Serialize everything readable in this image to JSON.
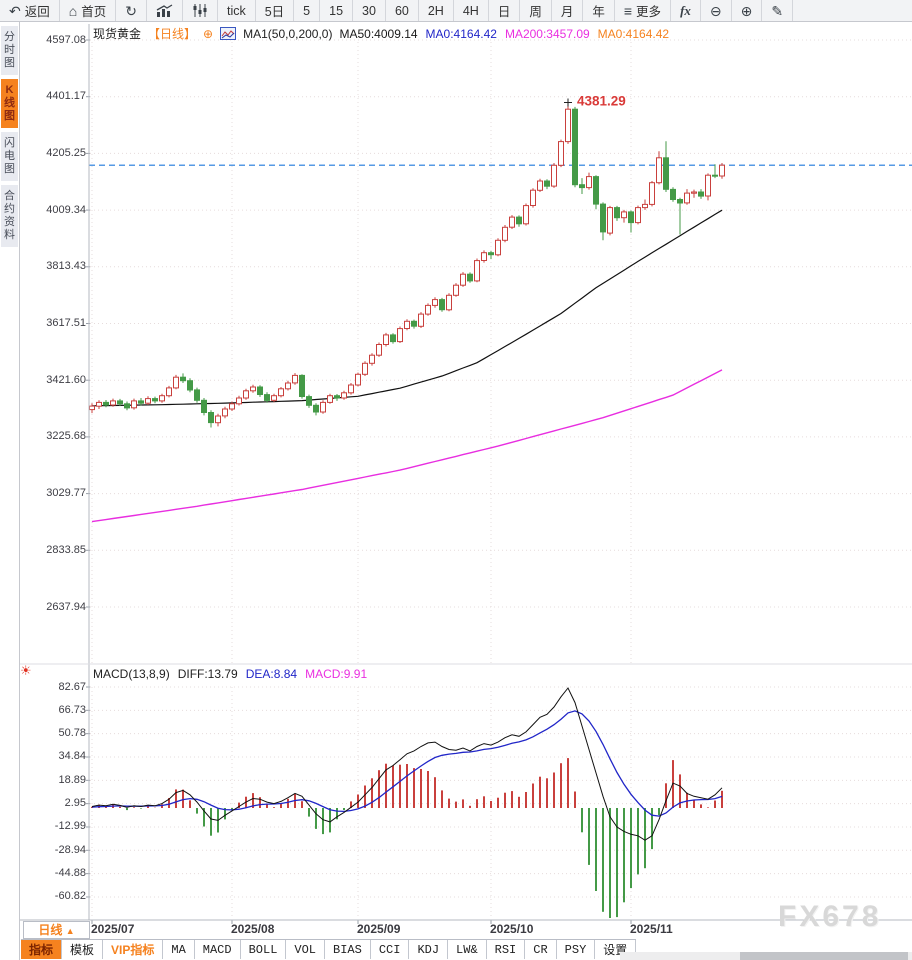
{
  "toolbar": {
    "items": [
      {
        "name": "back",
        "icon": "back",
        "label": "返回"
      },
      {
        "name": "home",
        "icon": "home",
        "label": "首页"
      },
      {
        "name": "refresh",
        "icon": "refresh"
      },
      {
        "name": "bar-chart",
        "icon": "bars"
      },
      {
        "name": "candlestick",
        "icon": "candles"
      },
      {
        "name": "tick",
        "label": "tick"
      },
      {
        "name": "5-day",
        "label": "5日"
      },
      {
        "name": "5-min",
        "label": "5"
      },
      {
        "name": "15-min",
        "label": "15"
      },
      {
        "name": "30-min",
        "label": "30"
      },
      {
        "name": "60-min",
        "label": "60"
      },
      {
        "name": "2-hour",
        "label": "2H"
      },
      {
        "name": "4-hour",
        "label": "4H"
      },
      {
        "name": "daily",
        "label": "日"
      },
      {
        "name": "weekly",
        "label": "周"
      },
      {
        "name": "monthly",
        "label": "月"
      },
      {
        "name": "yearly",
        "label": "年"
      },
      {
        "name": "more",
        "icon": "menu",
        "label": "更多"
      },
      {
        "name": "fx-functions",
        "icon": "fx"
      },
      {
        "name": "zoom-out",
        "icon": "zoom-out"
      },
      {
        "name": "zoom-in",
        "icon": "zoom-in"
      },
      {
        "name": "draw",
        "icon": "pencil"
      }
    ]
  },
  "sidebar": {
    "items": [
      {
        "name": "time-chart",
        "label": "分时图",
        "active": false
      },
      {
        "name": "kline-chart",
        "label": "K线图",
        "active": true
      },
      {
        "name": "lightning-chart",
        "label": "闪电图",
        "active": false
      },
      {
        "name": "contract-info",
        "label": "合约资料",
        "active": false
      }
    ]
  },
  "main_chart": {
    "title": "现货黄金",
    "timeframe_tag": "【日线】",
    "add_icon": "⊕",
    "ma_settings": "MA1(50,0,200,0)",
    "ma_values": [
      {
        "label": "MA50:4009.14",
        "color": "#1a1a1a"
      },
      {
        "label": "MA0:4164.42",
        "color": "#2126c8"
      },
      {
        "label": "MA200:3457.09",
        "color": "#ea30e0"
      },
      {
        "label": "MA0:4164.42",
        "color": "#f5821f"
      }
    ],
    "y_labels": [
      "4597.08",
      "4401.17",
      "4205.25",
      "4009.34",
      "3813.43",
      "3617.51",
      "3421.60",
      "3225.68",
      "3029.77",
      "2833.85",
      "2637.94"
    ],
    "annotation": "4381.29"
  },
  "macd": {
    "header": "MACD(13,8,9)",
    "diff_label": "DIFF:13.79",
    "dea_label": "DEA:8.84",
    "macd_label": "MACD:9.91",
    "y_labels": [
      "82.67",
      "66.73",
      "50.78",
      "34.84",
      "18.89",
      "2.95",
      "-12.99",
      "-28.94",
      "-44.88",
      "-60.82"
    ]
  },
  "x_axis": {
    "timeframe_label": "日线",
    "dropdown_arrow": "▲",
    "labels": [
      "2025/07",
      "2025/08",
      "2025/09",
      "2025/10",
      "2025/11"
    ]
  },
  "bottom_bar": {
    "items": [
      {
        "name": "indicators",
        "label": "指标",
        "style": "active"
      },
      {
        "name": "templates",
        "label": "模板",
        "style": ""
      },
      {
        "name": "vip-indicators",
        "label": "VIP指标",
        "style": "vip"
      },
      {
        "name": "ma",
        "label": "MA",
        "style": "mono"
      },
      {
        "name": "macd",
        "label": "MACD",
        "style": "mono"
      },
      {
        "name": "boll",
        "label": "BOLL",
        "style": "mono"
      },
      {
        "name": "vol",
        "label": "VOL",
        "style": "mono"
      },
      {
        "name": "bias",
        "label": "BIAS",
        "style": "mono"
      },
      {
        "name": "cci",
        "label": "CCI",
        "style": "mono"
      },
      {
        "name": "kdj",
        "label": "KDJ",
        "style": "mono"
      },
      {
        "name": "lw",
        "label": "LW&",
        "style": "mono"
      },
      {
        "name": "rsi",
        "label": "RSI",
        "style": "mono"
      },
      {
        "name": "cr",
        "label": "CR",
        "style": "mono"
      },
      {
        "name": "psy",
        "label": "PSY",
        "style": "mono"
      },
      {
        "name": "settings",
        "label": "设置",
        "style": ""
      }
    ]
  },
  "watermark": "FX678",
  "colors": {
    "accent_orange": "#f5821f",
    "up_red": "#c9403d",
    "down_green": "#449a47",
    "ma50": "#111111",
    "ma200": "#e82ee0",
    "dea_blue": "#2126c8",
    "diff_black": "#111111",
    "price_line": "#1f78dc",
    "annotation_red": "#d93a38",
    "grid": "#e6dcdc"
  },
  "chart_data": {
    "type": "candlestick+macd",
    "symbol": "现货黄金",
    "interval": "日线",
    "price_axis_ticks": [
      4597.08,
      4401.17,
      4205.25,
      4009.34,
      3813.43,
      3617.51,
      3421.6,
      3225.68,
      3029.77,
      2833.85,
      2637.94
    ],
    "macd_axis_ticks": [
      82.67,
      66.73,
      50.78,
      34.84,
      18.89,
      2.95,
      -12.99,
      -28.94,
      -44.88,
      -60.82
    ],
    "x_labels": [
      "2025/07",
      "2025/08",
      "2025/09",
      "2025/10",
      "2025/11"
    ],
    "x_label_indices": [
      0,
      20,
      38,
      57,
      77
    ],
    "current_price": 4164.42,
    "peak_high": 4381.29,
    "annotation_index": 68,
    "ma50_last": 4009.14,
    "ma200_last": 3457.09,
    "diff_last": 13.79,
    "dea_last": 8.84,
    "macd_hist_last": 9.91,
    "candles": [
      [
        3320,
        3342,
        3308,
        3332
      ],
      [
        3332,
        3352,
        3322,
        3345
      ],
      [
        3345,
        3353,
        3328,
        3336
      ],
      [
        3336,
        3358,
        3330,
        3350
      ],
      [
        3350,
        3357,
        3332,
        3340
      ],
      [
        3340,
        3348,
        3318,
        3326
      ],
      [
        3326,
        3358,
        3320,
        3350
      ],
      [
        3350,
        3360,
        3334,
        3342
      ],
      [
        3342,
        3366,
        3336,
        3358
      ],
      [
        3358,
        3365,
        3342,
        3350
      ],
      [
        3350,
        3375,
        3344,
        3368
      ],
      [
        3368,
        3402,
        3362,
        3395
      ],
      [
        3395,
        3440,
        3390,
        3432
      ],
      [
        3432,
        3445,
        3412,
        3420
      ],
      [
        3420,
        3428,
        3380,
        3388
      ],
      [
        3388,
        3396,
        3344,
        3352
      ],
      [
        3352,
        3360,
        3300,
        3310
      ],
      [
        3310,
        3318,
        3258,
        3275
      ],
      [
        3275,
        3306,
        3262,
        3298
      ],
      [
        3298,
        3330,
        3290,
        3322
      ],
      [
        3322,
        3348,
        3315,
        3340
      ],
      [
        3340,
        3368,
        3334,
        3360
      ],
      [
        3360,
        3392,
        3354,
        3385
      ],
      [
        3385,
        3406,
        3378,
        3398
      ],
      [
        3398,
        3404,
        3364,
        3372
      ],
      [
        3372,
        3380,
        3344,
        3352
      ],
      [
        3352,
        3375,
        3346,
        3368
      ],
      [
        3368,
        3398,
        3362,
        3392
      ],
      [
        3392,
        3420,
        3386,
        3412
      ],
      [
        3412,
        3446,
        3406,
        3438
      ],
      [
        3438,
        3442,
        3358,
        3365
      ],
      [
        3365,
        3372,
        3326,
        3335
      ],
      [
        3335,
        3342,
        3300,
        3312
      ],
      [
        3312,
        3352,
        3306,
        3345
      ],
      [
        3345,
        3375,
        3340,
        3368
      ],
      [
        3368,
        3374,
        3350,
        3360
      ],
      [
        3360,
        3385,
        3354,
        3378
      ],
      [
        3378,
        3412,
        3372,
        3405
      ],
      [
        3405,
        3448,
        3400,
        3442
      ],
      [
        3442,
        3487,
        3436,
        3480
      ],
      [
        3480,
        3515,
        3472,
        3508
      ],
      [
        3508,
        3552,
        3502,
        3545
      ],
      [
        3545,
        3585,
        3538,
        3578
      ],
      [
        3578,
        3584,
        3548,
        3555
      ],
      [
        3555,
        3607,
        3550,
        3600
      ],
      [
        3600,
        3632,
        3594,
        3625
      ],
      [
        3625,
        3631,
        3600,
        3608
      ],
      [
        3608,
        3657,
        3602,
        3650
      ],
      [
        3650,
        3687,
        3644,
        3680
      ],
      [
        3680,
        3708,
        3672,
        3700
      ],
      [
        3700,
        3706,
        3658,
        3665
      ],
      [
        3665,
        3722,
        3660,
        3715
      ],
      [
        3715,
        3757,
        3710,
        3750
      ],
      [
        3750,
        3795,
        3744,
        3788
      ],
      [
        3788,
        3794,
        3758,
        3765
      ],
      [
        3765,
        3842,
        3760,
        3835
      ],
      [
        3835,
        3870,
        3828,
        3862
      ],
      [
        3862,
        3868,
        3840,
        3855
      ],
      [
        3855,
        3912,
        3850,
        3905
      ],
      [
        3905,
        3958,
        3898,
        3950
      ],
      [
        3950,
        3992,
        3944,
        3985
      ],
      [
        3985,
        3991,
        3952,
        3962
      ],
      [
        3962,
        4032,
        3956,
        4025
      ],
      [
        4025,
        4085,
        4018,
        4078
      ],
      [
        4078,
        4118,
        4072,
        4110
      ],
      [
        4110,
        4116,
        4082,
        4092
      ],
      [
        4092,
        4172,
        4086,
        4164
      ],
      [
        4164,
        4253,
        4158,
        4246
      ],
      [
        4246,
        4381.29,
        4238,
        4358
      ],
      [
        4358,
        4366,
        4088,
        4097
      ],
      [
        4097,
        4120,
        4065,
        4087
      ],
      [
        4087,
        4139,
        4080,
        4125
      ],
      [
        4125,
        4130,
        4012,
        4030
      ],
      [
        4030,
        4036,
        3905,
        3934
      ],
      [
        3930,
        4024,
        3922,
        4018
      ],
      [
        4018,
        4024,
        3972,
        3983
      ],
      [
        3983,
        4010,
        3966,
        4003
      ],
      [
        4003,
        4008,
        3932,
        3966
      ],
      [
        3966,
        4025,
        3960,
        4018
      ],
      [
        4018,
        4046,
        4010,
        4029
      ],
      [
        4029,
        4110,
        4022,
        4104
      ],
      [
        4104,
        4213,
        4098,
        4190
      ],
      [
        4190,
        4247,
        4072,
        4081
      ],
      [
        4081,
        4088,
        4038,
        4046
      ],
      [
        4046,
        4052,
        3925,
        4034
      ],
      [
        4034,
        4082,
        4028,
        4068
      ],
      [
        4068,
        4080,
        4052,
        4072
      ],
      [
        4072,
        4082,
        4048,
        4058
      ],
      [
        4058,
        4136,
        4043,
        4130
      ],
      [
        4130,
        4168,
        4120,
        4127
      ],
      [
        4127,
        4172,
        4118,
        4164.42
      ]
    ],
    "ma50_points": [
      [
        0,
        3333
      ],
      [
        10,
        3337
      ],
      [
        20,
        3343
      ],
      [
        30,
        3351
      ],
      [
        38,
        3366
      ],
      [
        44,
        3394
      ],
      [
        50,
        3436
      ],
      [
        55,
        3482
      ],
      [
        61,
        3566
      ],
      [
        67,
        3652
      ],
      [
        72,
        3741
      ],
      [
        78,
        3832
      ],
      [
        84,
        3921
      ],
      [
        90,
        4009.14
      ]
    ],
    "ma200_points": [
      [
        0,
        2933
      ],
      [
        15,
        2986
      ],
      [
        30,
        3044
      ],
      [
        44,
        3111
      ],
      [
        58,
        3194
      ],
      [
        73,
        3292
      ],
      [
        83,
        3370
      ],
      [
        90,
        3457.09
      ]
    ],
    "macd_diff": [
      1,
      2,
      1.5,
      2.5,
      1.8,
      0.5,
      1.5,
      1,
      2,
      1.5,
      3,
      6,
      10.5,
      12,
      9,
      4,
      -2,
      -7.5,
      -8.5,
      -5,
      -2,
      1,
      4,
      6.5,
      6,
      4,
      3,
      4.5,
      7,
      10,
      8,
      2,
      -4,
      -8,
      -9.5,
      -6,
      -3,
      0.5,
      4,
      9,
      14,
      20,
      26,
      29,
      33,
      37,
      39,
      42,
      44.5,
      45,
      42,
      40,
      39.5,
      41,
      39,
      42,
      44,
      43,
      45,
      48,
      50,
      49,
      52,
      57,
      62,
      64,
      69,
      76,
      82,
      72,
      56,
      40,
      24,
      8,
      -6,
      -13,
      -16,
      -18,
      -19,
      -22,
      -19,
      -8,
      5,
      17,
      15,
      10,
      8,
      7,
      6,
      9,
      13.79
    ],
    "dea_smoothing": 0.2,
    "dea_start": 0.5
  }
}
